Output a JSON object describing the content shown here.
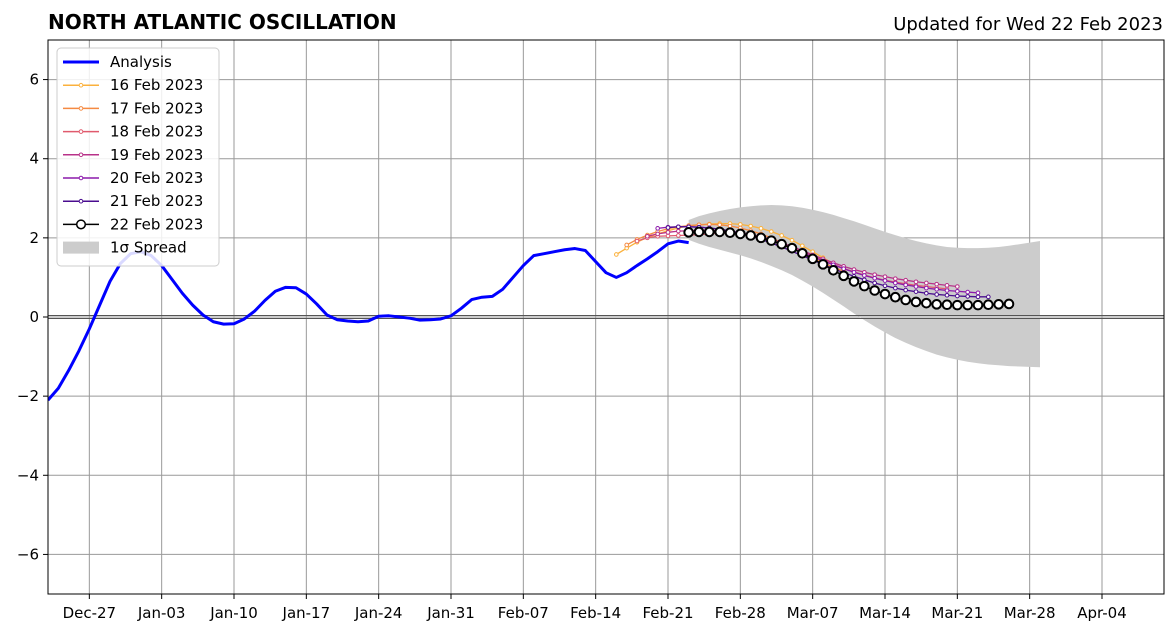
{
  "chart_data": {
    "type": "line",
    "title": "NORTH ATLANTIC OSCILLATION",
    "subtitle": "Updated for Wed 22 Feb 2023",
    "xlabel": "",
    "ylabel": "",
    "x_range": [
      "2022-12-23",
      "2023-04-10"
    ],
    "ylim": [
      -7,
      7
    ],
    "yticks": [
      -6,
      -4,
      -2,
      0,
      2,
      4,
      6
    ],
    "ytick_labels": [
      "−6",
      "−4",
      "−2",
      "0",
      "2",
      "4",
      "6"
    ],
    "xticks": [
      "2022-12-27",
      "2023-01-03",
      "2023-01-10",
      "2023-01-17",
      "2023-01-24",
      "2023-01-31",
      "2023-02-07",
      "2023-02-14",
      "2023-02-21",
      "2023-02-28",
      "2023-03-07",
      "2023-03-14",
      "2023-03-21",
      "2023-03-28",
      "2023-04-04"
    ],
    "xtick_labels": [
      "Dec-27",
      "Jan-03",
      "Jan-10",
      "Jan-17",
      "Jan-24",
      "Jan-31",
      "Feb-07",
      "Feb-14",
      "Feb-21",
      "Feb-28",
      "Mar-07",
      "Mar-14",
      "Mar-21",
      "Mar-28",
      "Apr-04"
    ],
    "grid": true,
    "zero_line": true,
    "legend_position": "top-left",
    "analysis": {
      "name": "Analysis",
      "color": "#0000ff",
      "start": "2022-12-23",
      "values": [
        -2.1,
        -1.8,
        -1.35,
        -0.85,
        -0.3,
        0.3,
        0.9,
        1.35,
        1.6,
        1.65,
        1.55,
        1.3,
        0.95,
        0.6,
        0.3,
        0.05,
        -0.12,
        -0.18,
        -0.17,
        -0.05,
        0.15,
        0.42,
        0.65,
        0.75,
        0.74,
        0.58,
        0.33,
        0.05,
        -0.07,
        -0.1,
        -0.12,
        -0.1,
        0.02,
        0.03,
        0.0,
        -0.03,
        -0.08,
        -0.07,
        -0.05,
        0.03,
        0.22,
        0.44,
        0.5,
        0.52,
        0.7,
        1.0,
        1.3,
        1.55,
        1.6,
        1.65,
        1.7,
        1.73,
        1.68,
        1.4,
        1.12,
        1.0,
        1.12,
        1.3,
        1.47,
        1.65,
        1.85,
        1.92,
        1.88
      ]
    },
    "forecasts": [
      {
        "name": "16 Feb 2023",
        "color": "#fbb13c",
        "start": "2023-02-16",
        "values": [
          1.58,
          1.74,
          1.89,
          2.01,
          2.1,
          2.18,
          2.25,
          2.3,
          2.33,
          2.35,
          2.36,
          2.36,
          2.34,
          2.3,
          2.24,
          2.16,
          2.06,
          1.94,
          1.8,
          1.65,
          1.5,
          1.35
        ]
      },
      {
        "name": "17 Feb 2023",
        "color": "#f58a42",
        "start": "2023-02-17",
        "values": [
          1.82,
          1.96,
          2.07,
          2.16,
          2.23,
          2.28,
          2.31,
          2.33,
          2.34,
          2.33,
          2.3,
          2.25,
          2.18,
          2.1,
          2.0,
          1.88,
          1.75,
          1.62,
          1.49,
          1.37,
          1.26,
          1.16
        ]
      },
      {
        "name": "18 Feb 2023",
        "color": "#e05a6d",
        "start": "2023-02-18",
        "values": [
          1.92,
          2.0,
          2.04,
          2.05,
          2.06,
          2.07,
          2.08,
          2.1,
          2.12,
          2.12,
          2.11,
          2.08,
          2.03,
          1.96,
          1.87,
          1.77,
          1.66,
          1.55,
          1.44,
          1.33,
          1.23,
          1.14,
          1.06,
          0.99,
          0.93,
          0.88,
          0.84,
          0.8,
          0.77,
          0.74,
          0.71
        ]
      },
      {
        "name": "19 Feb 2023",
        "color": "#b83289",
        "start": "2023-02-19",
        "values": [
          2.04,
          2.1,
          2.14,
          2.17,
          2.18,
          2.19,
          2.19,
          2.18,
          2.16,
          2.13,
          2.09,
          2.03,
          1.96,
          1.88,
          1.78,
          1.68,
          1.57,
          1.47,
          1.37,
          1.28,
          1.2,
          1.13,
          1.07,
          1.02,
          0.97,
          0.93,
          0.89,
          0.86,
          0.83,
          0.8,
          0.77
        ]
      },
      {
        "name": "20 Feb 2023",
        "color": "#8c1aab",
        "start": "2023-02-20",
        "values": [
          2.24,
          2.27,
          2.28,
          2.28,
          2.27,
          2.25,
          2.22,
          2.18,
          2.13,
          2.07,
          2.0,
          1.92,
          1.83,
          1.73,
          1.63,
          1.52,
          1.42,
          1.32,
          1.22,
          1.13,
          1.05,
          0.98,
          0.92,
          0.86,
          0.81,
          0.77,
          0.73,
          0.7,
          0.67,
          0.65,
          0.63,
          0.61
        ]
      },
      {
        "name": "21 Feb 2023",
        "color": "#4a0c8f",
        "start": "2023-02-21",
        "values": [
          2.26,
          2.28,
          2.28,
          2.27,
          2.25,
          2.22,
          2.17,
          2.11,
          2.04,
          1.96,
          1.87,
          1.77,
          1.66,
          1.55,
          1.44,
          1.33,
          1.22,
          1.12,
          1.03,
          0.94,
          0.86,
          0.79,
          0.73,
          0.68,
          0.64,
          0.6,
          0.57,
          0.55,
          0.53,
          0.52,
          0.51,
          0.51
        ]
      },
      {
        "name": "22 Feb 2023",
        "color": "#000000",
        "start": "2023-02-23",
        "values": [
          2.14,
          2.15,
          2.15,
          2.15,
          2.13,
          2.1,
          2.06,
          2.0,
          1.93,
          1.84,
          1.74,
          1.61,
          1.47,
          1.33,
          1.18,
          1.04,
          0.9,
          0.78,
          0.67,
          0.58,
          0.5,
          0.43,
          0.38,
          0.35,
          0.32,
          0.31,
          0.3,
          0.3,
          0.3,
          0.31,
          0.32,
          0.33
        ]
      }
    ],
    "spread": {
      "name": "1σ Spread",
      "color": "#cccccc",
      "start": "2023-02-23",
      "upper": [
        2.45,
        2.55,
        2.62,
        2.68,
        2.73,
        2.77,
        2.8,
        2.82,
        2.83,
        2.82,
        2.8,
        2.76,
        2.71,
        2.65,
        2.58,
        2.5,
        2.42,
        2.33,
        2.24,
        2.15,
        2.07,
        1.99,
        1.92,
        1.86,
        1.81,
        1.77,
        1.75,
        1.74,
        1.74,
        1.75,
        1.77,
        1.8,
        1.84,
        1.88,
        1.92
      ],
      "lower": [
        1.95,
        1.85,
        1.77,
        1.7,
        1.63,
        1.56,
        1.48,
        1.39,
        1.29,
        1.18,
        1.06,
        0.92,
        0.77,
        0.61,
        0.44,
        0.27,
        0.09,
        -0.08,
        -0.24,
        -0.39,
        -0.53,
        -0.65,
        -0.76,
        -0.86,
        -0.95,
        -1.02,
        -1.08,
        -1.13,
        -1.17,
        -1.2,
        -1.22,
        -1.24,
        -1.25,
        -1.26,
        -1.27
      ]
    }
  }
}
